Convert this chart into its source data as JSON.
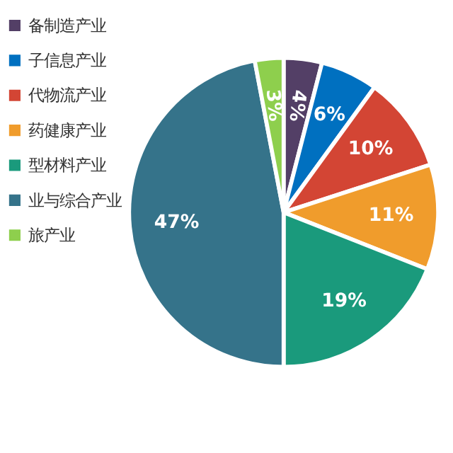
{
  "chart_data": {
    "type": "pie",
    "categories": [
      "备制造产业",
      "子信息产业",
      "代物流产业",
      "药健康产业",
      "型材料产业",
      "业与综合产业",
      "旅产业"
    ],
    "values": [
      4,
      6,
      10,
      11,
      19,
      47,
      3
    ],
    "colors": [
      "#533f66",
      "#0070c0",
      "#d34534",
      "#f09c2c",
      "#1a9a7c",
      "#35738a",
      "#8ecf4d"
    ],
    "value_labels": [
      "4%",
      "6%",
      "10%",
      "11%",
      "19%",
      "47%",
      "3%"
    ],
    "legend": "left"
  }
}
